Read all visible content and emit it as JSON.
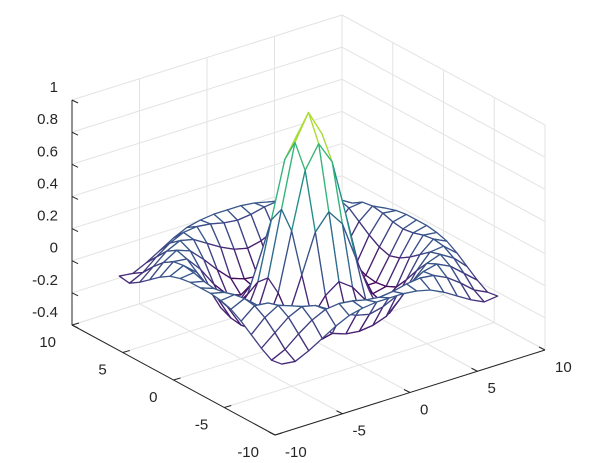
{
  "chart_data": {
    "type": "mesh",
    "colormap": "viridis",
    "grid": true,
    "x": [
      -8,
      -7,
      -6,
      -5,
      -4,
      -3,
      -2,
      -1,
      0,
      1,
      2,
      3,
      4,
      5,
      6,
      7,
      8
    ],
    "y": [
      -8,
      -7,
      -6,
      -5,
      -4,
      -3,
      -2,
      -1,
      0,
      1,
      2,
      3,
      4,
      5,
      6,
      7,
      8
    ],
    "z": [
      [
        -0.08,
        -0.09,
        -0.05,
        0,
        0.05,
        0.09,
        0.11,
        0.12,
        0.12,
        0.12,
        0.11,
        0.09,
        0.05,
        0,
        -0.05,
        -0.09,
        -0.08
      ],
      [
        -0.09,
        -0.05,
        0.02,
        0.08,
        0.12,
        0.13,
        0.12,
        0.1,
        0.09,
        0.1,
        0.12,
        0.13,
        0.12,
        0.08,
        0.02,
        -0.05,
        -0.09
      ],
      [
        -0.05,
        0.02,
        0.09,
        0.13,
        0.11,
        0.06,
        0.01,
        -0.03,
        -0.05,
        -0.03,
        0.01,
        0.06,
        0.11,
        0.13,
        0.09,
        0.02,
        -0.05
      ],
      [
        0,
        0.08,
        0.13,
        0.1,
        0.02,
        -0.07,
        -0.15,
        -0.18,
        -0.19,
        -0.18,
        -0.15,
        -0.07,
        0.02,
        0.1,
        0.13,
        0.08,
        0
      ],
      [
        0.05,
        0.12,
        0.11,
        0.02,
        -0.1,
        -0.19,
        -0.22,
        -0.2,
        -0.19,
        -0.2,
        -0.22,
        -0.19,
        -0.1,
        0.02,
        0.11,
        0.12,
        0.05
      ],
      [
        0.09,
        0.13,
        0.06,
        -0.07,
        -0.19,
        -0.21,
        -0.12,
        -0.01,
        0.05,
        -0.01,
        -0.12,
        -0.21,
        -0.19,
        -0.07,
        0.06,
        0.13,
        0.09
      ],
      [
        0.11,
        0.12,
        0.01,
        -0.15,
        -0.22,
        -0.12,
        0.11,
        0.35,
        0.45,
        0.35,
        0.11,
        -0.12,
        -0.22,
        -0.15,
        0.01,
        0.12,
        0.11
      ],
      [
        0.12,
        0.1,
        -0.03,
        -0.18,
        -0.2,
        -0.01,
        0.35,
        0.7,
        0.84,
        0.7,
        0.35,
        -0.01,
        -0.2,
        -0.18,
        -0.03,
        0.1,
        0.12
      ],
      [
        0.12,
        0.09,
        -0.05,
        -0.19,
        -0.19,
        0.05,
        0.45,
        0.84,
        1,
        0.84,
        0.45,
        0.05,
        -0.19,
        -0.19,
        -0.05,
        0.09,
        0.12
      ],
      [
        0.12,
        0.1,
        -0.03,
        -0.18,
        -0.2,
        -0.01,
        0.35,
        0.7,
        0.84,
        0.7,
        0.35,
        -0.01,
        -0.2,
        -0.18,
        -0.03,
        0.1,
        0.12
      ],
      [
        0.11,
        0.12,
        0.01,
        -0.15,
        -0.22,
        -0.12,
        0.11,
        0.35,
        0.45,
        0.35,
        0.11,
        -0.12,
        -0.22,
        -0.15,
        0.01,
        0.12,
        0.11
      ],
      [
        0.09,
        0.13,
        0.06,
        -0.07,
        -0.19,
        -0.21,
        -0.12,
        -0.01,
        0.05,
        -0.01,
        -0.12,
        -0.21,
        -0.19,
        -0.07,
        0.06,
        0.13,
        0.09
      ],
      [
        0.05,
        0.12,
        0.11,
        0.02,
        -0.1,
        -0.19,
        -0.22,
        -0.2,
        -0.19,
        -0.2,
        -0.22,
        -0.19,
        -0.1,
        0.02,
        0.11,
        0.12,
        0.05
      ],
      [
        0,
        0.08,
        0.13,
        0.1,
        0.02,
        -0.07,
        -0.15,
        -0.18,
        -0.19,
        -0.18,
        -0.15,
        -0.07,
        0.02,
        0.1,
        0.13,
        0.08,
        0
      ],
      [
        -0.05,
        0.02,
        0.09,
        0.13,
        0.11,
        0.06,
        0.01,
        -0.03,
        -0.05,
        -0.03,
        0.01,
        0.06,
        0.11,
        0.13,
        0.09,
        0.02,
        -0.05
      ],
      [
        -0.09,
        -0.05,
        0.02,
        0.08,
        0.12,
        0.13,
        0.12,
        0.1,
        0.09,
        0.1,
        0.12,
        0.13,
        0.12,
        0.08,
        0.02,
        -0.05,
        -0.09
      ],
      [
        -0.08,
        -0.09,
        -0.05,
        0,
        0.05,
        0.09,
        0.11,
        0.12,
        0.12,
        0.12,
        0.11,
        0.09,
        0.05,
        0,
        -0.05,
        -0.09,
        -0.08
      ]
    ],
    "xlim": [
      -10,
      10
    ],
    "ylim": [
      -10,
      10
    ],
    "zlim": [
      -0.4,
      1
    ],
    "xticks": [
      -10,
      -5,
      0,
      5,
      10
    ],
    "yticks": [
      -10,
      -5,
      0,
      5,
      10
    ],
    "zticks": [
      -0.4,
      -0.2,
      0,
      0.2,
      0.4,
      0.6,
      0.8,
      1
    ]
  }
}
